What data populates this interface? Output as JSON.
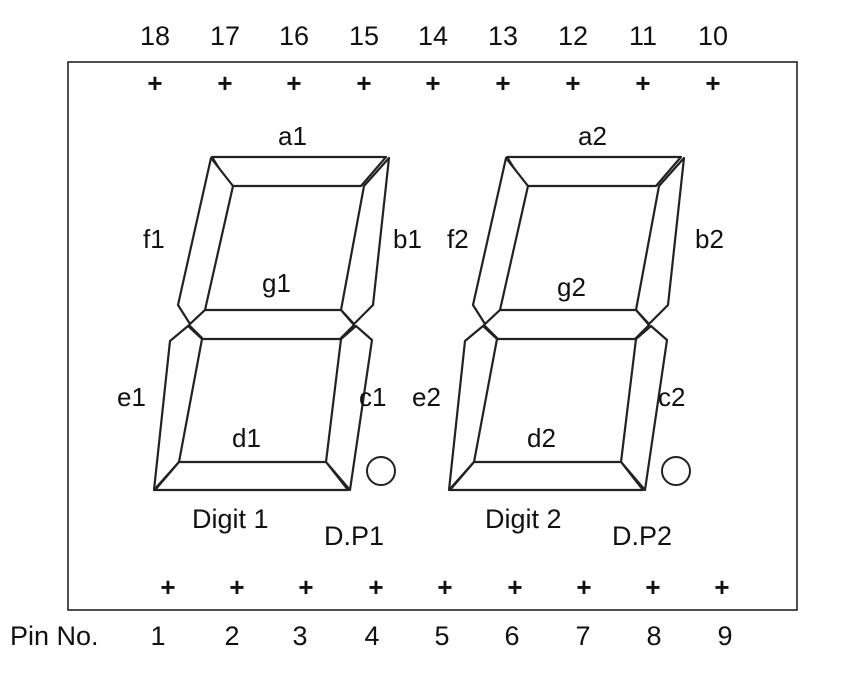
{
  "pins": {
    "top": [
      "18",
      "17",
      "16",
      "15",
      "14",
      "13",
      "12",
      "11",
      "10"
    ],
    "bottom": [
      "1",
      "2",
      "3",
      "4",
      "5",
      "6",
      "7",
      "8",
      "9"
    ],
    "bottom_caption": "Pin No.",
    "marker": "+"
  },
  "digits": [
    {
      "label": "Digit 1",
      "dp_label": "D.P1",
      "segments": {
        "a": "a1",
        "b": "b1",
        "c": "c1",
        "d": "d1",
        "e": "e1",
        "f": "f1",
        "g": "g1"
      }
    },
    {
      "label": "Digit 2",
      "dp_label": "D.P2",
      "segments": {
        "a": "a2",
        "b": "b2",
        "c": "c2",
        "d": "d2",
        "e": "e2",
        "f": "f2",
        "g": "g2"
      }
    }
  ]
}
